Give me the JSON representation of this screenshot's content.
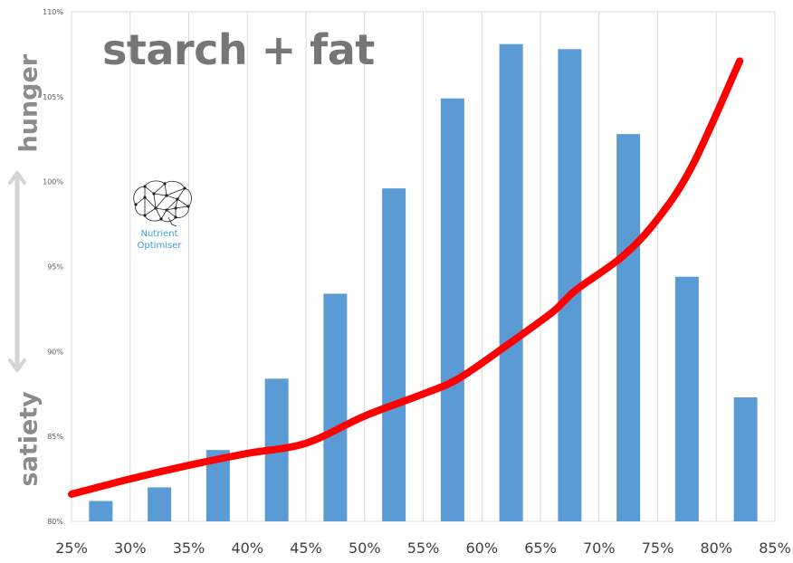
{
  "title": "starch + fat",
  "side_labels": {
    "top": "hunger",
    "bottom": "satiety"
  },
  "logo": {
    "name_line1": "Nutrient",
    "name_line2": "Optimiser",
    "icon": "brain-network-icon"
  },
  "colors": {
    "bar": "#5b9bd5",
    "line": "#ff0000",
    "grid": "#d9d9d9",
    "axis_text": "#595959",
    "title": "#767676",
    "side": "#8c8c8c",
    "logo": "#3a9fd8"
  },
  "chart_data": {
    "type": "bar",
    "xlabel": "",
    "ylabel": "",
    "x_ticks": [
      "25%",
      "30%",
      "35%",
      "40%",
      "45%",
      "50%",
      "55%",
      "60%",
      "65%",
      "70%",
      "75%",
      "80%",
      "85%"
    ],
    "y_ticks": [
      "80%",
      "85%",
      "90%",
      "95%",
      "100%",
      "105%",
      "110%"
    ],
    "xlim": [
      25,
      85
    ],
    "ylim": [
      80,
      110
    ],
    "grid": "vertical",
    "series": [
      {
        "type": "bar",
        "x": [
          27.5,
          32.5,
          37.5,
          42.5,
          47.5,
          52.5,
          57.5,
          62.5,
          67.5,
          72.5,
          77.5,
          82.5
        ],
        "values": [
          81.2,
          82.0,
          84.2,
          88.4,
          93.4,
          99.6,
          104.9,
          108.1,
          107.8,
          102.8,
          94.4,
          87.3
        ]
      },
      {
        "type": "line",
        "x": [
          25,
          30,
          35,
          40,
          45,
          50,
          55,
          58,
          62,
          66,
          68,
          72,
          75,
          78,
          82
        ],
        "values": [
          81.6,
          82.5,
          83.3,
          84.0,
          84.6,
          86.2,
          87.5,
          88.4,
          90.3,
          92.3,
          93.6,
          95.6,
          97.8,
          101.0,
          107.1
        ]
      }
    ]
  }
}
